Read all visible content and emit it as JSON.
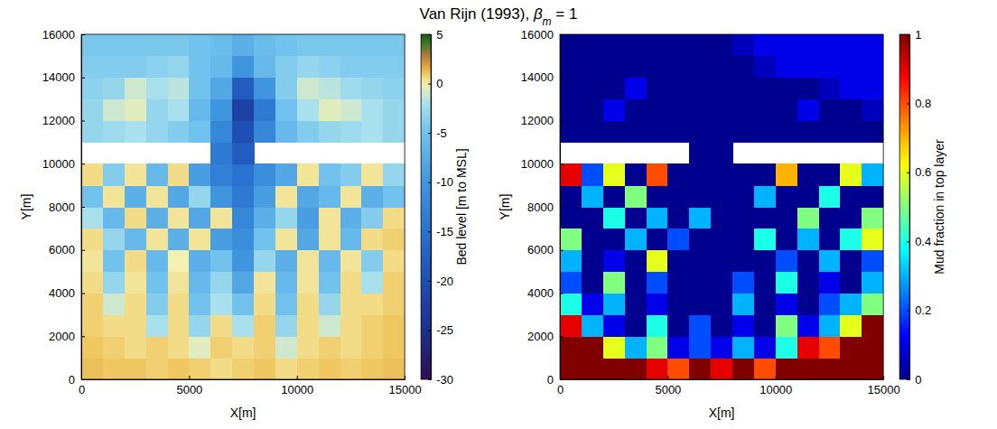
{
  "title": "Van Rijn (1993), βm = 1",
  "chart_data": [
    {
      "type": "heatmap",
      "xlabel": "X[m]",
      "ylabel": "Y[m]",
      "color": "terrain",
      "xlim": [
        0,
        15000
      ],
      "ylim": [
        0,
        16000
      ],
      "xticks": [
        0,
        5000,
        10000,
        15000
      ],
      "yticks": [
        0,
        2000,
        4000,
        6000,
        8000,
        10000,
        12000,
        14000,
        16000
      ],
      "x": [
        500,
        1500,
        2500,
        3500,
        4500,
        5500,
        6500,
        7500,
        8500,
        9500,
        10500,
        11500,
        12500,
        13500,
        14500
      ],
      "y": [
        500,
        1500,
        2500,
        3500,
        4500,
        5500,
        6500,
        7500,
        8500,
        9500,
        10500,
        11500,
        12500,
        13500,
        14500,
        15500
      ],
      "z": [
        [
          1.2,
          1.0,
          1.0,
          0.8,
          1.0,
          0.8,
          0.5,
          0.8,
          1.0,
          0.5,
          0.8,
          1.0,
          0.8,
          1.0,
          1.2
        ],
        [
          1.0,
          0.8,
          0.5,
          0.8,
          0.5,
          -0.5,
          0.8,
          0.5,
          0.8,
          -1,
          0.5,
          0.8,
          0.5,
          0.8,
          1.0
        ],
        [
          0.8,
          0.5,
          0.5,
          -2,
          0.5,
          -3,
          0.5,
          -2,
          0.8,
          -3,
          0.5,
          -1,
          0.5,
          0.8,
          1.0
        ],
        [
          0.8,
          -1,
          0.5,
          -4,
          0.5,
          -5,
          -2,
          -5,
          0.5,
          -5,
          0.5,
          -3,
          0.5,
          0.5,
          0.8
        ],
        [
          0.5,
          -3,
          0.3,
          -5,
          0.3,
          -6,
          -3,
          -8,
          0.3,
          -6,
          0.3,
          -5,
          0.5,
          -2,
          0.8
        ],
        [
          0.3,
          -5,
          0.5,
          -6,
          0.0,
          -7,
          -5,
          -10,
          -3,
          -7,
          0.3,
          -6,
          0.3,
          -4,
          0.5
        ],
        [
          0.5,
          -3,
          -6,
          0.3,
          -7,
          0.3,
          -9,
          -11,
          -5,
          0.3,
          -8,
          0.3,
          -6,
          0.5,
          0.8
        ],
        [
          -2,
          -6,
          0.5,
          -7,
          0.3,
          -8,
          0.3,
          -12,
          -7,
          -3,
          -9,
          0.3,
          -7,
          -4,
          0.5
        ],
        [
          -5,
          0.3,
          -7,
          0.3,
          -8,
          -3,
          -10,
          -14,
          -9,
          0.3,
          -8,
          -6,
          0.3,
          -7,
          -5
        ],
        [
          0.5,
          -4,
          0.3,
          -6,
          0.5,
          -9,
          -13,
          -15,
          -11,
          -8,
          0.3,
          -5,
          -4,
          0.3,
          -3
        ],
        [
          null,
          null,
          null,
          null,
          null,
          null,
          -14,
          -18,
          null,
          null,
          null,
          null,
          null,
          null,
          null
        ],
        [
          -3,
          -2.5,
          -2,
          -3,
          -4,
          -5,
          -12,
          -20,
          -12,
          -6,
          -4,
          -3,
          -2.5,
          -2,
          -3
        ],
        [
          -3,
          -1,
          -0.5,
          -3,
          -2,
          -6,
          -10,
          -22,
          -14,
          -5,
          -2,
          -0.5,
          -1,
          -2,
          -3
        ],
        [
          -3.5,
          -3,
          -1,
          -2,
          -1.5,
          -5,
          -8,
          -18,
          -10,
          -4,
          -1,
          -1.5,
          -2.5,
          -3,
          -3.5
        ],
        [
          -4,
          -4,
          -4,
          -3.5,
          -3,
          -5,
          -6,
          -10,
          -6,
          -4,
          -3,
          -3.5,
          -4,
          -4,
          -4
        ],
        [
          -4.5,
          -4.5,
          -4.5,
          -4.5,
          -4.5,
          -5,
          -5.5,
          -7,
          -5.5,
          -5,
          -4.5,
          -4.5,
          -4.5,
          -4.5,
          -4.5
        ]
      ],
      "colorbar": {
        "label": "Bed level [m to MSL]",
        "range": [
          -30,
          5
        ],
        "ticks": [
          -30,
          -25,
          -20,
          -15,
          -10,
          -5,
          0,
          5
        ]
      }
    },
    {
      "type": "heatmap",
      "xlabel": "X[m]",
      "ylabel": "Y[m]",
      "color": "jet",
      "xlim": [
        0,
        15000
      ],
      "ylim": [
        0,
        16000
      ],
      "xticks": [
        0,
        5000,
        10000,
        15000
      ],
      "yticks": [
        0,
        2000,
        4000,
        6000,
        8000,
        10000,
        12000,
        14000,
        16000
      ],
      "x": [
        500,
        1500,
        2500,
        3500,
        4500,
        5500,
        6500,
        7500,
        8500,
        9500,
        10500,
        11500,
        12500,
        13500,
        14500
      ],
      "y": [
        500,
        1500,
        2500,
        3500,
        4500,
        5500,
        6500,
        7500,
        8500,
        9500,
        10500,
        11500,
        12500,
        13500,
        14500,
        15500
      ],
      "z": [
        [
          1,
          1,
          1,
          1,
          0.9,
          0.8,
          1,
          0.9,
          1,
          0.8,
          1,
          1,
          1,
          1,
          1
        ],
        [
          1,
          1,
          0.6,
          0.3,
          0.5,
          0.1,
          0.2,
          0.1,
          0.3,
          0.1,
          0.4,
          0.9,
          0.8,
          1,
          1
        ],
        [
          0.9,
          0.3,
          0.1,
          0,
          0.4,
          0,
          0.2,
          0,
          0.1,
          0,
          0.5,
          0.1,
          0.3,
          0.6,
          1
        ],
        [
          0.4,
          0.1,
          0.3,
          0,
          0.1,
          0,
          0,
          0,
          0.3,
          0,
          0.1,
          0,
          0.2,
          0.3,
          0.5
        ],
        [
          0.2,
          0,
          0.5,
          0,
          0.2,
          0,
          0,
          0,
          0.2,
          0,
          0.4,
          0,
          0.1,
          0,
          0.3
        ],
        [
          0.3,
          0,
          0.1,
          0,
          0.6,
          0,
          0,
          0,
          0,
          0,
          0.2,
          0,
          0.3,
          0,
          0.2
        ],
        [
          0.5,
          0,
          0,
          0.3,
          0,
          0.2,
          0,
          0,
          0,
          0.4,
          0,
          0.3,
          0,
          0.4,
          0.6
        ],
        [
          0,
          0,
          0.4,
          0,
          0.3,
          0,
          0.3,
          0,
          0,
          0,
          0,
          0.5,
          0,
          0,
          0.5
        ],
        [
          0,
          0.3,
          0,
          0.5,
          0,
          0,
          0,
          0,
          0,
          0.3,
          0,
          0,
          0.4,
          0,
          0
        ],
        [
          0.9,
          0.2,
          0.6,
          0,
          0.8,
          0,
          0,
          0,
          0,
          0,
          0.7,
          0,
          0,
          0.6,
          0.3
        ],
        [
          null,
          null,
          null,
          null,
          null,
          null,
          0,
          0,
          null,
          null,
          null,
          null,
          null,
          null,
          null
        ],
        [
          0,
          0,
          0,
          0,
          0,
          0,
          0,
          0,
          0,
          0,
          0,
          0,
          0,
          0,
          0
        ],
        [
          0,
          0,
          0.1,
          0,
          0,
          0,
          0,
          0,
          0,
          0,
          0,
          0.1,
          0,
          0,
          0.05
        ],
        [
          0,
          0,
          0,
          0.1,
          0,
          0,
          0,
          0,
          0,
          0,
          0,
          0,
          0.05,
          0.1,
          0.1
        ],
        [
          0,
          0,
          0,
          0,
          0,
          0,
          0,
          0,
          0,
          0.05,
          0.1,
          0.1,
          0.1,
          0.1,
          0.1
        ],
        [
          0,
          0,
          0,
          0,
          0,
          0,
          0,
          0,
          0.05,
          0.1,
          0.1,
          0.1,
          0.1,
          0.1,
          0.1
        ]
      ],
      "colorbar": {
        "label": "Mud fraction in top layer",
        "range": [
          0,
          1
        ],
        "ticks": [
          0,
          0.2,
          0.4,
          0.6,
          0.8,
          1
        ]
      }
    }
  ]
}
